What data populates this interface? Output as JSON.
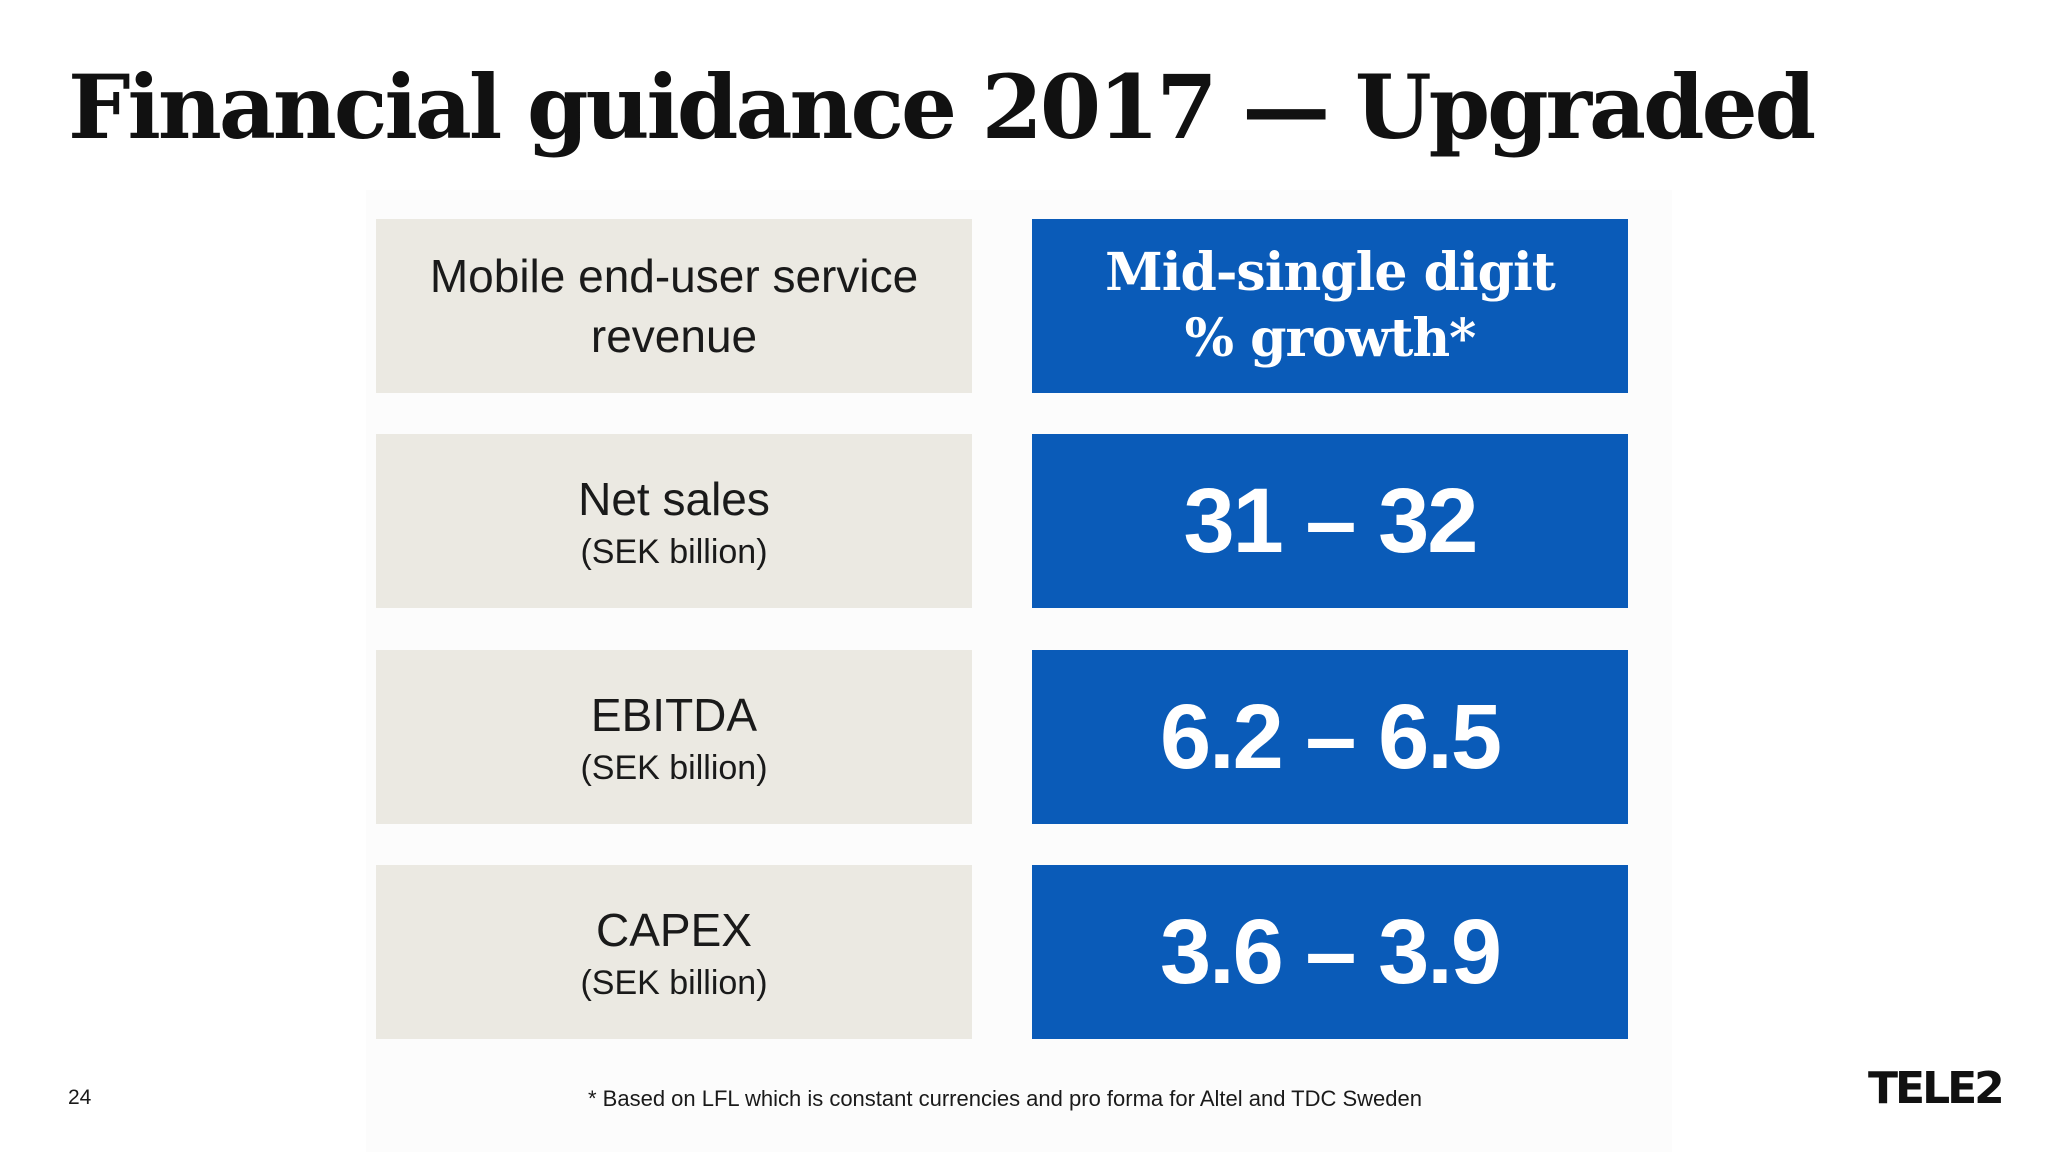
{
  "slide": {
    "title": "Financial guidance 2017 — Upgraded",
    "page_number": "24",
    "footnote": "* Based on LFL which is constant currencies and pro forma for Altel and TDC Sweden",
    "logo_text": "TELE2"
  },
  "guidance": [
    {
      "label": "Mobile end-user service revenue",
      "sublabel": "",
      "value": "Mid-single digit % growth*"
    },
    {
      "label": "Net sales",
      "sublabel": "(SEK billion)",
      "value": "31 – 32"
    },
    {
      "label": "EBITDA",
      "sublabel": "(SEK billion)",
      "value": "6.2 – 6.5"
    },
    {
      "label": "CAPEX",
      "sublabel": "(SEK billion)",
      "value": "3.6 – 3.9"
    }
  ],
  "colors": {
    "label_background": "#ebe9e2",
    "value_background": "#0a5bb8",
    "value_text": "#ffffff"
  }
}
